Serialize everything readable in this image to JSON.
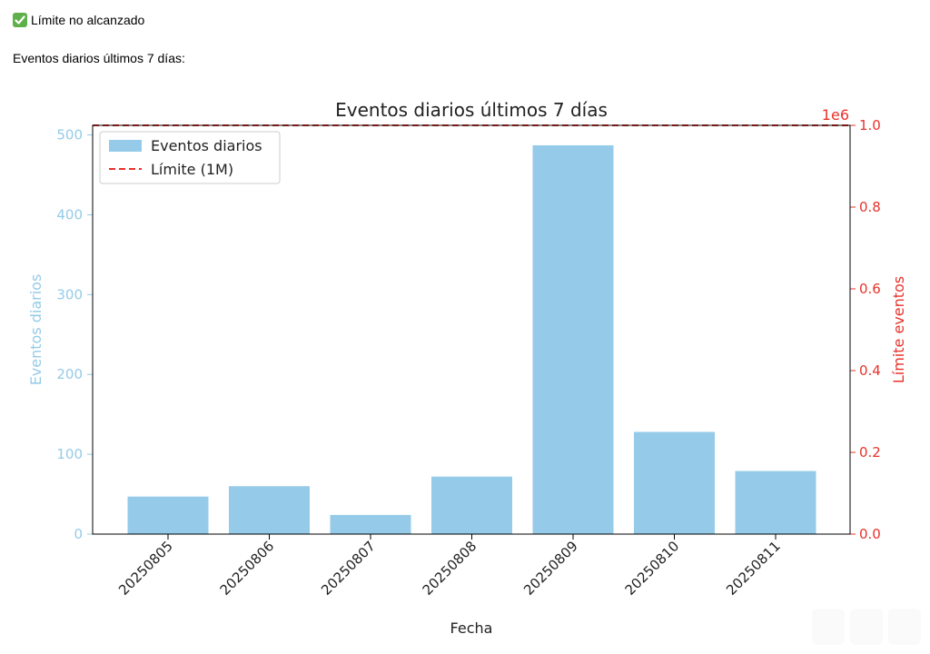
{
  "status": {
    "icon": "check-icon",
    "text": "Límite no alcanzado"
  },
  "section_label": "Eventos diarios últimos 7 días:",
  "colors": {
    "bars": "#95cbe8",
    "limit": "#e8322b",
    "left_axis": "#95cbe8",
    "right_axis": "#e8322b"
  },
  "chart_data": {
    "type": "bar",
    "title": "Eventos diarios últimos 7 días",
    "xlabel": "Fecha",
    "ylabel": "Eventos diarios",
    "ylabel_right": "Límite eventos",
    "right_axis_multiplier": "1e6",
    "categories": [
      "20250805",
      "20250806",
      "20250807",
      "20250808",
      "20250809",
      "20250810",
      "20250811"
    ],
    "series": [
      {
        "name": "Eventos diarios",
        "values": [
          47,
          60,
          24,
          72,
          487,
          128,
          79
        ]
      }
    ],
    "limit_line": {
      "name": "Límite (1M)",
      "value": 1000000
    },
    "ylim": [
      0,
      512
    ],
    "ylim_right": [
      0,
      1.0
    ],
    "yticks": [
      0,
      100,
      200,
      300,
      400,
      500
    ],
    "yticks_right": [
      "0.0",
      "0.2",
      "0.4",
      "0.6",
      "0.8",
      "1.0"
    ],
    "legend_position": "top-left",
    "grid": false
  }
}
